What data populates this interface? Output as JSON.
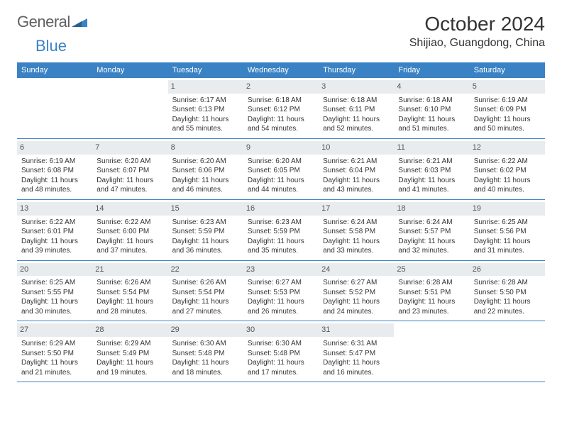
{
  "brand": {
    "part1": "General",
    "part2": "Blue"
  },
  "title": "October 2024",
  "location": "Shijiao, Guangdong, China",
  "colors": {
    "header_bg": "#3b82c4",
    "header_text": "#ffffff",
    "day_header_bg": "#e9ecef",
    "text": "#333333",
    "border": "#3b82c4",
    "background": "#ffffff"
  },
  "weekdays": [
    "Sunday",
    "Monday",
    "Tuesday",
    "Wednesday",
    "Thursday",
    "Friday",
    "Saturday"
  ],
  "weeks": [
    [
      {
        "day": "",
        "sunrise": "",
        "sunset": "",
        "daylight": "",
        "empty": true
      },
      {
        "day": "",
        "sunrise": "",
        "sunset": "",
        "daylight": "",
        "empty": true
      },
      {
        "day": "1",
        "sunrise": "Sunrise: 6:17 AM",
        "sunset": "Sunset: 6:13 PM",
        "daylight": "Daylight: 11 hours and 55 minutes."
      },
      {
        "day": "2",
        "sunrise": "Sunrise: 6:18 AM",
        "sunset": "Sunset: 6:12 PM",
        "daylight": "Daylight: 11 hours and 54 minutes."
      },
      {
        "day": "3",
        "sunrise": "Sunrise: 6:18 AM",
        "sunset": "Sunset: 6:11 PM",
        "daylight": "Daylight: 11 hours and 52 minutes."
      },
      {
        "day": "4",
        "sunrise": "Sunrise: 6:18 AM",
        "sunset": "Sunset: 6:10 PM",
        "daylight": "Daylight: 11 hours and 51 minutes."
      },
      {
        "day": "5",
        "sunrise": "Sunrise: 6:19 AM",
        "sunset": "Sunset: 6:09 PM",
        "daylight": "Daylight: 11 hours and 50 minutes."
      }
    ],
    [
      {
        "day": "6",
        "sunrise": "Sunrise: 6:19 AM",
        "sunset": "Sunset: 6:08 PM",
        "daylight": "Daylight: 11 hours and 48 minutes."
      },
      {
        "day": "7",
        "sunrise": "Sunrise: 6:20 AM",
        "sunset": "Sunset: 6:07 PM",
        "daylight": "Daylight: 11 hours and 47 minutes."
      },
      {
        "day": "8",
        "sunrise": "Sunrise: 6:20 AM",
        "sunset": "Sunset: 6:06 PM",
        "daylight": "Daylight: 11 hours and 46 minutes."
      },
      {
        "day": "9",
        "sunrise": "Sunrise: 6:20 AM",
        "sunset": "Sunset: 6:05 PM",
        "daylight": "Daylight: 11 hours and 44 minutes."
      },
      {
        "day": "10",
        "sunrise": "Sunrise: 6:21 AM",
        "sunset": "Sunset: 6:04 PM",
        "daylight": "Daylight: 11 hours and 43 minutes."
      },
      {
        "day": "11",
        "sunrise": "Sunrise: 6:21 AM",
        "sunset": "Sunset: 6:03 PM",
        "daylight": "Daylight: 11 hours and 41 minutes."
      },
      {
        "day": "12",
        "sunrise": "Sunrise: 6:22 AM",
        "sunset": "Sunset: 6:02 PM",
        "daylight": "Daylight: 11 hours and 40 minutes."
      }
    ],
    [
      {
        "day": "13",
        "sunrise": "Sunrise: 6:22 AM",
        "sunset": "Sunset: 6:01 PM",
        "daylight": "Daylight: 11 hours and 39 minutes."
      },
      {
        "day": "14",
        "sunrise": "Sunrise: 6:22 AM",
        "sunset": "Sunset: 6:00 PM",
        "daylight": "Daylight: 11 hours and 37 minutes."
      },
      {
        "day": "15",
        "sunrise": "Sunrise: 6:23 AM",
        "sunset": "Sunset: 5:59 PM",
        "daylight": "Daylight: 11 hours and 36 minutes."
      },
      {
        "day": "16",
        "sunrise": "Sunrise: 6:23 AM",
        "sunset": "Sunset: 5:59 PM",
        "daylight": "Daylight: 11 hours and 35 minutes."
      },
      {
        "day": "17",
        "sunrise": "Sunrise: 6:24 AM",
        "sunset": "Sunset: 5:58 PM",
        "daylight": "Daylight: 11 hours and 33 minutes."
      },
      {
        "day": "18",
        "sunrise": "Sunrise: 6:24 AM",
        "sunset": "Sunset: 5:57 PM",
        "daylight": "Daylight: 11 hours and 32 minutes."
      },
      {
        "day": "19",
        "sunrise": "Sunrise: 6:25 AM",
        "sunset": "Sunset: 5:56 PM",
        "daylight": "Daylight: 11 hours and 31 minutes."
      }
    ],
    [
      {
        "day": "20",
        "sunrise": "Sunrise: 6:25 AM",
        "sunset": "Sunset: 5:55 PM",
        "daylight": "Daylight: 11 hours and 30 minutes."
      },
      {
        "day": "21",
        "sunrise": "Sunrise: 6:26 AM",
        "sunset": "Sunset: 5:54 PM",
        "daylight": "Daylight: 11 hours and 28 minutes."
      },
      {
        "day": "22",
        "sunrise": "Sunrise: 6:26 AM",
        "sunset": "Sunset: 5:54 PM",
        "daylight": "Daylight: 11 hours and 27 minutes."
      },
      {
        "day": "23",
        "sunrise": "Sunrise: 6:27 AM",
        "sunset": "Sunset: 5:53 PM",
        "daylight": "Daylight: 11 hours and 26 minutes."
      },
      {
        "day": "24",
        "sunrise": "Sunrise: 6:27 AM",
        "sunset": "Sunset: 5:52 PM",
        "daylight": "Daylight: 11 hours and 24 minutes."
      },
      {
        "day": "25",
        "sunrise": "Sunrise: 6:28 AM",
        "sunset": "Sunset: 5:51 PM",
        "daylight": "Daylight: 11 hours and 23 minutes."
      },
      {
        "day": "26",
        "sunrise": "Sunrise: 6:28 AM",
        "sunset": "Sunset: 5:50 PM",
        "daylight": "Daylight: 11 hours and 22 minutes."
      }
    ],
    [
      {
        "day": "27",
        "sunrise": "Sunrise: 6:29 AM",
        "sunset": "Sunset: 5:50 PM",
        "daylight": "Daylight: 11 hours and 21 minutes."
      },
      {
        "day": "28",
        "sunrise": "Sunrise: 6:29 AM",
        "sunset": "Sunset: 5:49 PM",
        "daylight": "Daylight: 11 hours and 19 minutes."
      },
      {
        "day": "29",
        "sunrise": "Sunrise: 6:30 AM",
        "sunset": "Sunset: 5:48 PM",
        "daylight": "Daylight: 11 hours and 18 minutes."
      },
      {
        "day": "30",
        "sunrise": "Sunrise: 6:30 AM",
        "sunset": "Sunset: 5:48 PM",
        "daylight": "Daylight: 11 hours and 17 minutes."
      },
      {
        "day": "31",
        "sunrise": "Sunrise: 6:31 AM",
        "sunset": "Sunset: 5:47 PM",
        "daylight": "Daylight: 11 hours and 16 minutes."
      },
      {
        "day": "",
        "sunrise": "",
        "sunset": "",
        "daylight": "",
        "empty": true
      },
      {
        "day": "",
        "sunrise": "",
        "sunset": "",
        "daylight": "",
        "empty": true
      }
    ]
  ]
}
